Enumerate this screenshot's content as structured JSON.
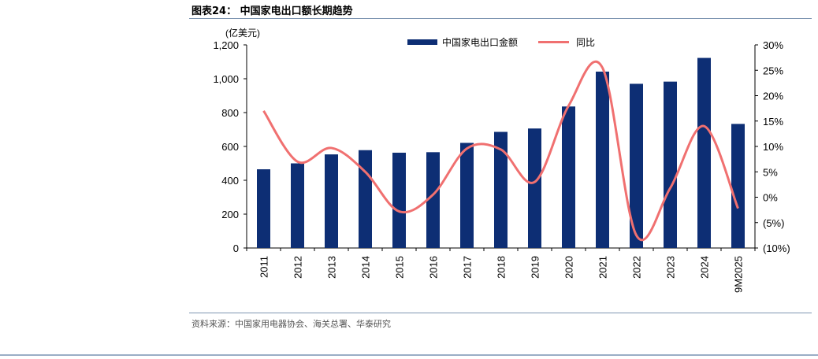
{
  "figure": {
    "title": "图表24：  中国家电出口额长期趋势",
    "source": "资料来源：中国家用电器协会、海关总署、华泰研究"
  },
  "chart_data": {
    "type": "bar",
    "title": "",
    "y_unit_label": "(亿美元)",
    "categories": [
      "2011",
      "2012",
      "2013",
      "2014",
      "2015",
      "2016",
      "2017",
      "2018",
      "2019",
      "2020",
      "2021",
      "2022",
      "2023",
      "2024",
      "9M2025"
    ],
    "series": [
      {
        "name": "中国家电出口金额",
        "type": "bar",
        "axis": "left",
        "color": "#0d2e74",
        "values": [
          465,
          500,
          553,
          578,
          563,
          566,
          621,
          686,
          706,
          836,
          1042,
          970,
          983,
          1123,
          733
        ]
      },
      {
        "name": "同比",
        "type": "line",
        "axis": "right",
        "color": "#f07070",
        "values": [
          17.0,
          7.0,
          9.7,
          5.0,
          -2.8,
          0.5,
          9.6,
          9.4,
          3.0,
          18.0,
          25.5,
          -7.5,
          1.8,
          14.0,
          -2.2
        ]
      }
    ],
    "y_left": {
      "range": [
        0,
        1200
      ],
      "ticks": [
        0,
        200,
        400,
        600,
        800,
        1000,
        1200
      ],
      "tick_labels": [
        "0",
        "200",
        "400",
        "600",
        "800",
        "1,000",
        "1,200"
      ]
    },
    "y_right": {
      "range": [
        -10,
        30
      ],
      "ticks": [
        -10,
        -5,
        0,
        5,
        10,
        15,
        20,
        25,
        30
      ],
      "tick_labels": [
        "(10%)",
        "(5%)",
        "0%",
        "5%",
        "10%",
        "15%",
        "20%",
        "25%",
        "30%"
      ]
    },
    "grid": false,
    "legend": "top"
  }
}
